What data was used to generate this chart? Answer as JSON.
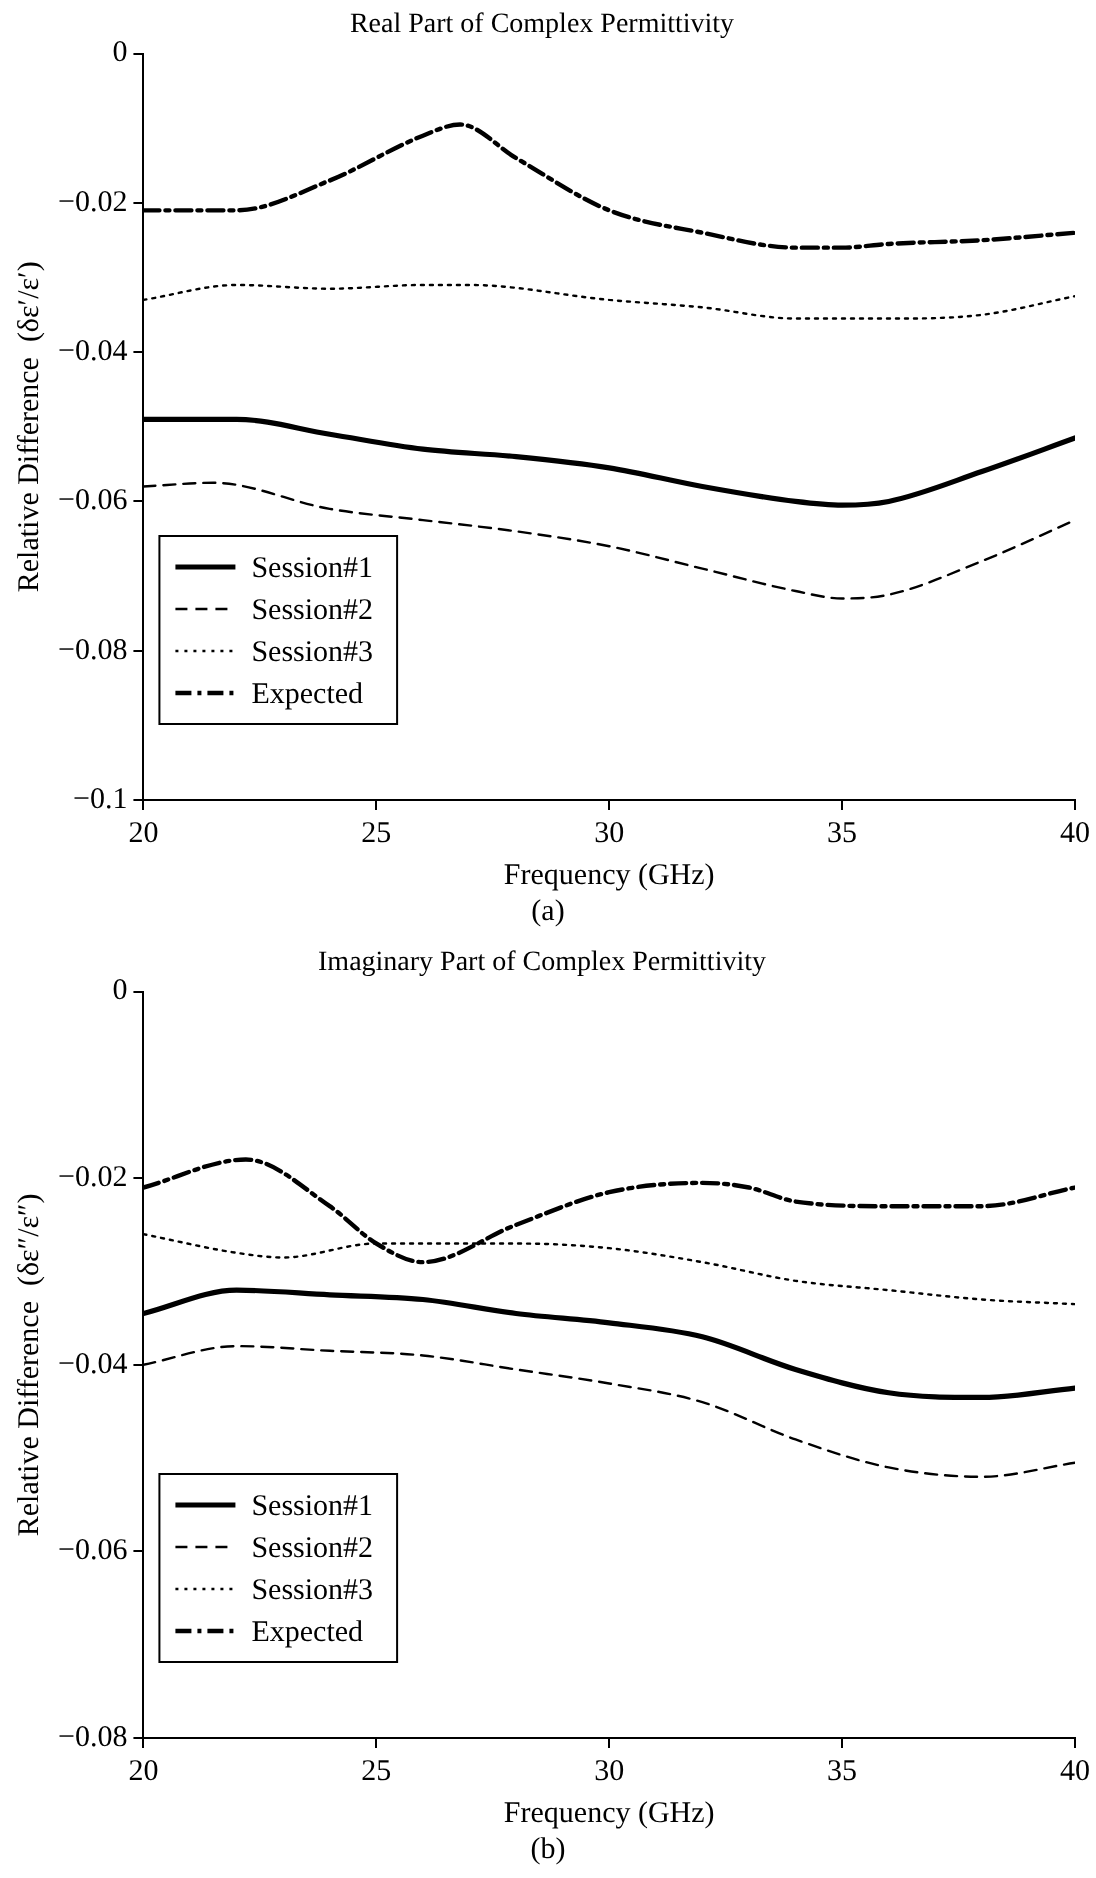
{
  "chart_data": [
    {
      "type": "line",
      "title": "Real Part of Complex Permittivity",
      "xlabel": "Frequency (GHz)",
      "ylabel": "Relative Difference  (δε′/ε′)",
      "annotations": [
        "(a)"
      ],
      "xlim": [
        20,
        40
      ],
      "xticks": [
        20,
        25,
        30,
        35,
        40
      ],
      "ylim": [
        -0.1,
        0
      ],
      "yticks": [
        {
          "value": -0.1,
          "label": "−0.1"
        },
        {
          "value": -0.08,
          "label": "−0.08"
        },
        {
          "value": -0.06,
          "label": "−0.06"
        },
        {
          "value": -0.04,
          "label": "−0.04"
        },
        {
          "value": -0.02,
          "label": "−0.02"
        },
        0
      ],
      "grid": false,
      "legend": "bottom left",
      "marker": "none",
      "series": [
        {
          "name": "Session#1",
          "color": "#000000",
          "line_style": "solid",
          "x": [
            20,
            22,
            24,
            26,
            28,
            30,
            32,
            34,
            35,
            36,
            38,
            40
          ],
          "values": [
            -0.049,
            -0.049,
            -0.051,
            -0.053,
            -0.054,
            -0.0555,
            -0.058,
            -0.06,
            -0.0605,
            -0.06,
            -0.056,
            -0.0515
          ]
        },
        {
          "name": "Session#2",
          "color": "#000000",
          "line_style": "dashed",
          "x": [
            20,
            21.5,
            24,
            26,
            28,
            30,
            32,
            34,
            35,
            36,
            38,
            40
          ],
          "values": [
            -0.058,
            -0.0575,
            -0.061,
            -0.0625,
            -0.064,
            -0.066,
            -0.069,
            -0.072,
            -0.073,
            -0.0725,
            -0.068,
            -0.0625
          ]
        },
        {
          "name": "Session#3",
          "color": "#000000",
          "line_style": "dotted",
          "x": [
            20,
            22,
            24,
            26,
            27,
            30,
            32,
            34,
            36,
            38,
            40
          ],
          "values": [
            -0.033,
            -0.031,
            -0.0315,
            -0.031,
            -0.031,
            -0.033,
            -0.034,
            -0.0355,
            -0.0355,
            -0.035,
            -0.0325
          ]
        },
        {
          "name": "Expected",
          "color": "#000000",
          "line_style": "dashdot",
          "x": [
            20,
            22,
            24,
            26,
            26.8,
            28,
            30,
            32,
            34,
            35,
            36,
            38,
            40
          ],
          "values": [
            -0.021,
            -0.021,
            -0.017,
            -0.011,
            -0.0095,
            -0.014,
            -0.021,
            -0.024,
            -0.026,
            -0.026,
            -0.0255,
            -0.025,
            -0.024
          ]
        }
      ]
    },
    {
      "type": "line",
      "title": "Imaginary Part of Complex Permittivity",
      "xlabel": "Frequency (GHz)",
      "ylabel": "Relative Difference  (δε″/ε″)",
      "annotations": [
        "(b)"
      ],
      "xlim": [
        20,
        40
      ],
      "xticks": [
        20,
        25,
        30,
        35,
        40
      ],
      "ylim": [
        -0.08,
        0
      ],
      "yticks": [
        {
          "value": -0.08,
          "label": "−0.08"
        },
        {
          "value": -0.06,
          "label": "−0.06"
        },
        {
          "value": -0.04,
          "label": "−0.04"
        },
        {
          "value": -0.02,
          "label": "−0.02"
        },
        0
      ],
      "grid": false,
      "legend": "bottom left",
      "marker": "none",
      "series": [
        {
          "name": "Session#1",
          "color": "#000000",
          "line_style": "solid",
          "x": [
            20,
            22,
            24,
            26,
            28,
            30,
            32,
            34,
            36,
            38,
            40
          ],
          "values": [
            -0.0345,
            -0.032,
            -0.0325,
            -0.033,
            -0.0345,
            -0.0355,
            -0.037,
            -0.0405,
            -0.043,
            -0.0435,
            -0.0425
          ]
        },
        {
          "name": "Session#2",
          "color": "#000000",
          "line_style": "dashed",
          "x": [
            20,
            22,
            24,
            26,
            28,
            30,
            32,
            34,
            36,
            38,
            40
          ],
          "values": [
            -0.04,
            -0.038,
            -0.0385,
            -0.039,
            -0.0405,
            -0.042,
            -0.044,
            -0.048,
            -0.051,
            -0.052,
            -0.0505
          ]
        },
        {
          "name": "Session#3",
          "color": "#000000",
          "line_style": "dotted",
          "x": [
            20,
            22,
            23,
            25,
            28,
            30,
            32,
            34,
            36,
            38,
            40
          ],
          "values": [
            -0.026,
            -0.028,
            -0.0285,
            -0.027,
            -0.027,
            -0.0275,
            -0.029,
            -0.031,
            -0.032,
            -0.033,
            -0.0335
          ]
        },
        {
          "name": "Expected",
          "color": "#000000",
          "line_style": "dashdot",
          "x": [
            20,
            22.2,
            24,
            25,
            26,
            28,
            30,
            32,
            33,
            34,
            36,
            38,
            40
          ],
          "values": [
            -0.021,
            -0.018,
            -0.023,
            -0.027,
            -0.029,
            -0.025,
            -0.0215,
            -0.0205,
            -0.021,
            -0.0225,
            -0.023,
            -0.023,
            -0.021
          ]
        }
      ]
    }
  ]
}
